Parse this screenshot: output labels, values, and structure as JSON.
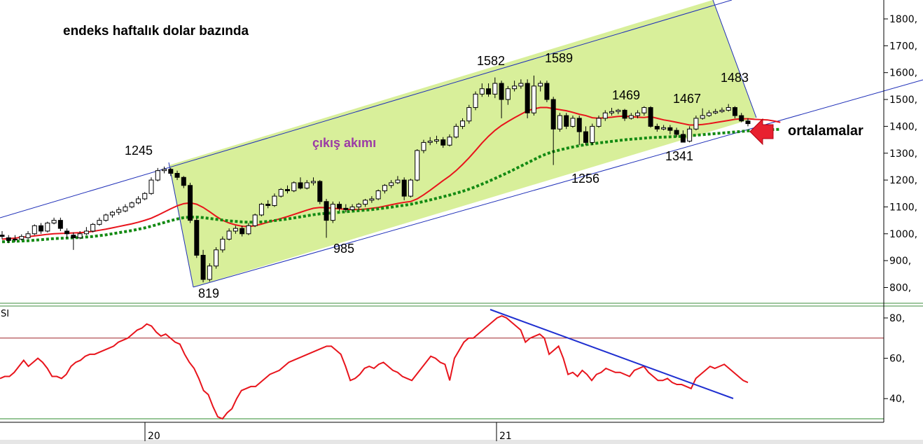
{
  "chart_data": [
    {
      "type": "candlestick",
      "title": "endeks haftalık dolar bazında",
      "y_ticks": [
        "800,",
        "900,",
        "1000,",
        "1100,",
        "1200,",
        "1300,",
        "1400,",
        "1500,",
        "1600,",
        "1700,",
        "1800,"
      ],
      "ylim": [
        750,
        1860
      ],
      "x_ticks": [
        "20",
        "21"
      ],
      "channel_label": "çıkış akımı",
      "averages_label": "ortalamalar",
      "annotations": [
        "1245",
        "819",
        "985",
        "1582",
        "1589",
        "1256",
        "1469",
        "1467",
        "1483",
        "1341"
      ],
      "candles": [
        [
          995,
          990,
          1010,
          980
        ],
        [
          985,
          975,
          995,
          965
        ],
        [
          980,
          980,
          995,
          970
        ],
        [
          980,
          990,
          998,
          975
        ],
        [
          985,
          1000,
          1010,
          980
        ],
        [
          1000,
          1030,
          1035,
          995
        ],
        [
          1030,
          1010,
          1040,
          1000
        ],
        [
          1010,
          1040,
          1045,
          1005
        ],
        [
          1040,
          1050,
          1060,
          1035
        ],
        [
          1050,
          1020,
          1060,
          1010
        ],
        [
          1010,
          1000,
          1020,
          985
        ],
        [
          995,
          985,
          1005,
          940
        ],
        [
          985,
          1000,
          1010,
          980
        ],
        [
          1000,
          1010,
          1025,
          995
        ],
        [
          1010,
          1035,
          1040,
          1005
        ],
        [
          1035,
          1050,
          1060,
          1030
        ],
        [
          1050,
          1070,
          1075,
          1045
        ],
        [
          1070,
          1080,
          1085,
          1060
        ],
        [
          1080,
          1090,
          1100,
          1070
        ],
        [
          1085,
          1100,
          1110,
          1080
        ],
        [
          1100,
          1115,
          1120,
          1095
        ],
        [
          1115,
          1130,
          1140,
          1110
        ],
        [
          1130,
          1150,
          1155,
          1125
        ],
        [
          1150,
          1200,
          1210,
          1145
        ],
        [
          1200,
          1235,
          1245,
          1195
        ],
        [
          1235,
          1240,
          1250,
          1225
        ],
        [
          1240,
          1225,
          1245,
          1215
        ],
        [
          1225,
          1210,
          1235,
          1200
        ],
        [
          1210,
          1180,
          1215,
          1170
        ],
        [
          1180,
          1050,
          1190,
          1040
        ],
        [
          1050,
          920,
          1060,
          910
        ],
        [
          920,
          830,
          940,
          819
        ],
        [
          830,
          880,
          890,
          822
        ],
        [
          880,
          940,
          950,
          870
        ],
        [
          940,
          980,
          990,
          930
        ],
        [
          980,
          1010,
          1020,
          975
        ],
        [
          1010,
          1020,
          1030,
          1000
        ],
        [
          1020,
          1000,
          1030,
          990
        ],
        [
          1000,
          1030,
          1040,
          995
        ],
        [
          1030,
          1070,
          1075,
          1025
        ],
        [
          1070,
          1110,
          1115,
          1065
        ],
        [
          1110,
          1105,
          1125,
          1095
        ],
        [
          1105,
          1140,
          1150,
          1100
        ],
        [
          1140,
          1165,
          1170,
          1135
        ],
        [
          1165,
          1160,
          1180,
          1150
        ],
        [
          1160,
          1190,
          1195,
          1155
        ],
        [
          1190,
          1170,
          1210,
          1165
        ],
        [
          1170,
          1190,
          1200,
          1165
        ],
        [
          1190,
          1195,
          1210,
          1180
        ],
        [
          1195,
          1120,
          1200,
          1110
        ],
        [
          1120,
          1050,
          1130,
          985
        ],
        [
          1050,
          1110,
          1120,
          1040
        ],
        [
          1110,
          1095,
          1120,
          1085
        ],
        [
          1095,
          1090,
          1110,
          1080
        ],
        [
          1090,
          1100,
          1110,
          1085
        ],
        [
          1100,
          1110,
          1115,
          1090
        ],
        [
          1110,
          1125,
          1130,
          1100
        ],
        [
          1125,
          1130,
          1140,
          1115
        ],
        [
          1130,
          1160,
          1165,
          1125
        ],
        [
          1160,
          1180,
          1185,
          1150
        ],
        [
          1180,
          1190,
          1200,
          1170
        ],
        [
          1190,
          1200,
          1215,
          1185
        ],
        [
          1200,
          1140,
          1210,
          1125
        ],
        [
          1140,
          1200,
          1205,
          1135
        ],
        [
          1200,
          1310,
          1315,
          1195
        ],
        [
          1310,
          1340,
          1350,
          1300
        ],
        [
          1340,
          1345,
          1360,
          1330
        ],
        [
          1345,
          1350,
          1365,
          1335
        ],
        [
          1350,
          1330,
          1360,
          1320
        ],
        [
          1330,
          1360,
          1370,
          1325
        ],
        [
          1360,
          1400,
          1410,
          1355
        ],
        [
          1400,
          1420,
          1430,
          1390
        ],
        [
          1420,
          1470,
          1480,
          1410
        ],
        [
          1470,
          1520,
          1530,
          1460
        ],
        [
          1520,
          1540,
          1560,
          1510
        ],
        [
          1540,
          1520,
          1560,
          1510
        ],
        [
          1520,
          1560,
          1582,
          1505
        ],
        [
          1560,
          1500,
          1570,
          1430
        ],
        [
          1500,
          1540,
          1550,
          1480
        ],
        [
          1540,
          1550,
          1570,
          1530
        ],
        [
          1550,
          1560,
          1575,
          1540
        ],
        [
          1560,
          1450,
          1575,
          1430
        ],
        [
          1450,
          1550,
          1589,
          1440
        ],
        [
          1550,
          1560,
          1570,
          1530
        ],
        [
          1560,
          1500,
          1570,
          1490
        ],
        [
          1500,
          1390,
          1510,
          1256
        ],
        [
          1390,
          1440,
          1450,
          1380
        ],
        [
          1440,
          1400,
          1450,
          1390
        ],
        [
          1400,
          1430,
          1440,
          1395
        ],
        [
          1430,
          1380,
          1440,
          1330
        ],
        [
          1380,
          1340,
          1400,
          1330
        ],
        [
          1340,
          1400,
          1410,
          1330
        ],
        [
          1400,
          1430,
          1440,
          1395
        ],
        [
          1430,
          1450,
          1460,
          1420
        ],
        [
          1450,
          1455,
          1469,
          1440
        ],
        [
          1455,
          1460,
          1465,
          1445
        ],
        [
          1460,
          1430,
          1465,
          1420
        ],
        [
          1430,
          1440,
          1450,
          1425
        ],
        [
          1440,
          1450,
          1460,
          1430
        ],
        [
          1450,
          1470,
          1475,
          1440
        ],
        [
          1470,
          1400,
          1475,
          1395
        ],
        [
          1400,
          1390,
          1410,
          1380
        ],
        [
          1390,
          1395,
          1405,
          1385
        ],
        [
          1395,
          1385,
          1405,
          1370
        ],
        [
          1385,
          1370,
          1395,
          1360
        ],
        [
          1370,
          1341,
          1385,
          1341
        ],
        [
          1345,
          1390,
          1400,
          1340
        ],
        [
          1390,
          1430,
          1440,
          1385
        ],
        [
          1430,
          1440,
          1467,
          1425
        ],
        [
          1440,
          1450,
          1460,
          1435
        ],
        [
          1450,
          1455,
          1465,
          1445
        ],
        [
          1455,
          1460,
          1470,
          1450
        ],
        [
          1460,
          1470,
          1483,
          1455
        ],
        [
          1470,
          1440,
          1475,
          1430
        ],
        [
          1440,
          1420,
          1450,
          1415
        ],
        [
          1420,
          1410,
          1430,
          1400
        ]
      ],
      "series": [
        {
          "name": "",
          "style": "red-solid",
          "values": [
            980,
            982,
            984,
            987,
            989,
            992,
            995,
            998,
            1000,
            1001,
            1002,
            1003,
            1004,
            1006,
            1009,
            1013,
            1017,
            1022,
            1027,
            1032,
            1037,
            1043,
            1050,
            1058,
            1069,
            1081,
            1093,
            1104,
            1112,
            1115,
            1110,
            1098,
            1082,
            1065,
            1050,
            1040,
            1033,
            1028,
            1027,
            1030,
            1036,
            1043,
            1050,
            1057,
            1064,
            1072,
            1080,
            1088,
            1095,
            1098,
            1097,
            1095,
            1093,
            1091,
            1090,
            1090,
            1092,
            1095,
            1098,
            1103,
            1108,
            1113,
            1117,
            1120,
            1130,
            1145,
            1162,
            1180,
            1198,
            1215,
            1235,
            1258,
            1283,
            1310,
            1338,
            1363,
            1385,
            1403,
            1418,
            1432,
            1445,
            1458,
            1465,
            1470,
            1470,
            1466,
            1462,
            1458,
            1452,
            1445,
            1440,
            1432,
            1430,
            1432,
            1434,
            1437,
            1438,
            1436,
            1434,
            1433,
            1436,
            1430,
            1424,
            1420,
            1415,
            1410,
            1405,
            1405,
            1407,
            1410,
            1414,
            1418,
            1422,
            1426,
            1428,
            1428,
            1426,
            1425,
            1424,
            1420,
            1415
          ]
        },
        {
          "name": "",
          "style": "green-dotted",
          "values": [
            970,
            971,
            972,
            973,
            974,
            976,
            978,
            980,
            982,
            983,
            984,
            985,
            986,
            988,
            990,
            993,
            996,
            1000,
            1004,
            1008,
            1012,
            1017,
            1022,
            1028,
            1035,
            1042,
            1049,
            1055,
            1060,
            1062,
            1062,
            1060,
            1057,
            1054,
            1051,
            1048,
            1046,
            1044,
            1043,
            1043,
            1044,
            1046,
            1049,
            1052,
            1055,
            1059,
            1063,
            1067,
            1071,
            1074,
            1076,
            1078,
            1080,
            1082,
            1084,
            1086,
            1088,
            1090,
            1093,
            1096,
            1099,
            1103,
            1106,
            1110,
            1115,
            1120,
            1126,
            1132,
            1138,
            1144,
            1151,
            1158,
            1166,
            1175,
            1185,
            1195,
            1206,
            1217,
            1228,
            1240,
            1252,
            1264,
            1276,
            1288,
            1298,
            1306,
            1312,
            1318,
            1323,
            1328,
            1332,
            1335,
            1338,
            1341,
            1344,
            1347,
            1350,
            1352,
            1354,
            1356,
            1358,
            1359,
            1360,
            1361,
            1362,
            1363,
            1365,
            1367,
            1369,
            1371,
            1373,
            1375,
            1377,
            1379,
            1381,
            1383,
            1385,
            1386,
            1387,
            1388,
            1389
          ]
        }
      ]
    },
    {
      "type": "line",
      "title": "",
      "panel_label": "SI",
      "y_ticks": [
        "40,",
        "60,",
        "80,"
      ],
      "ylim": [
        30,
        85
      ],
      "reference_lines": [
        70,
        30
      ],
      "values": [
        50,
        51,
        51,
        53,
        56,
        59,
        56,
        58,
        60,
        58,
        55,
        51,
        51,
        50,
        52,
        56,
        58,
        59,
        61,
        62,
        62,
        63,
        64,
        65,
        66,
        68,
        69,
        70,
        72,
        74,
        75,
        77,
        76,
        73,
        71,
        72,
        70,
        68,
        67,
        62,
        58,
        55,
        50,
        44,
        42,
        36,
        31,
        30,
        33,
        35,
        40,
        44,
        45,
        46,
        46,
        48,
        50,
        52,
        53,
        54,
        56,
        58,
        59,
        60,
        61,
        62,
        63,
        64,
        65,
        66,
        66,
        64,
        62,
        56,
        49,
        50,
        52,
        55,
        56,
        55,
        57,
        58,
        56,
        54,
        53,
        51,
        50,
        49,
        52,
        55,
        58,
        61,
        60,
        58,
        57,
        49,
        60,
        64,
        68,
        70,
        70,
        72,
        74,
        76,
        78,
        80,
        81,
        80,
        78,
        76,
        74,
        68,
        70,
        71,
        72,
        70,
        62,
        64,
        66,
        60,
        52,
        53,
        51,
        54,
        52,
        49,
        52,
        53,
        55,
        54,
        53,
        53,
        52,
        51,
        54,
        55,
        56,
        53,
        51,
        49,
        49,
        50,
        48,
        47,
        47,
        46,
        45,
        50,
        52,
        54,
        56,
        55,
        56,
        57,
        55,
        53,
        51,
        49,
        48
      ]
    }
  ]
}
